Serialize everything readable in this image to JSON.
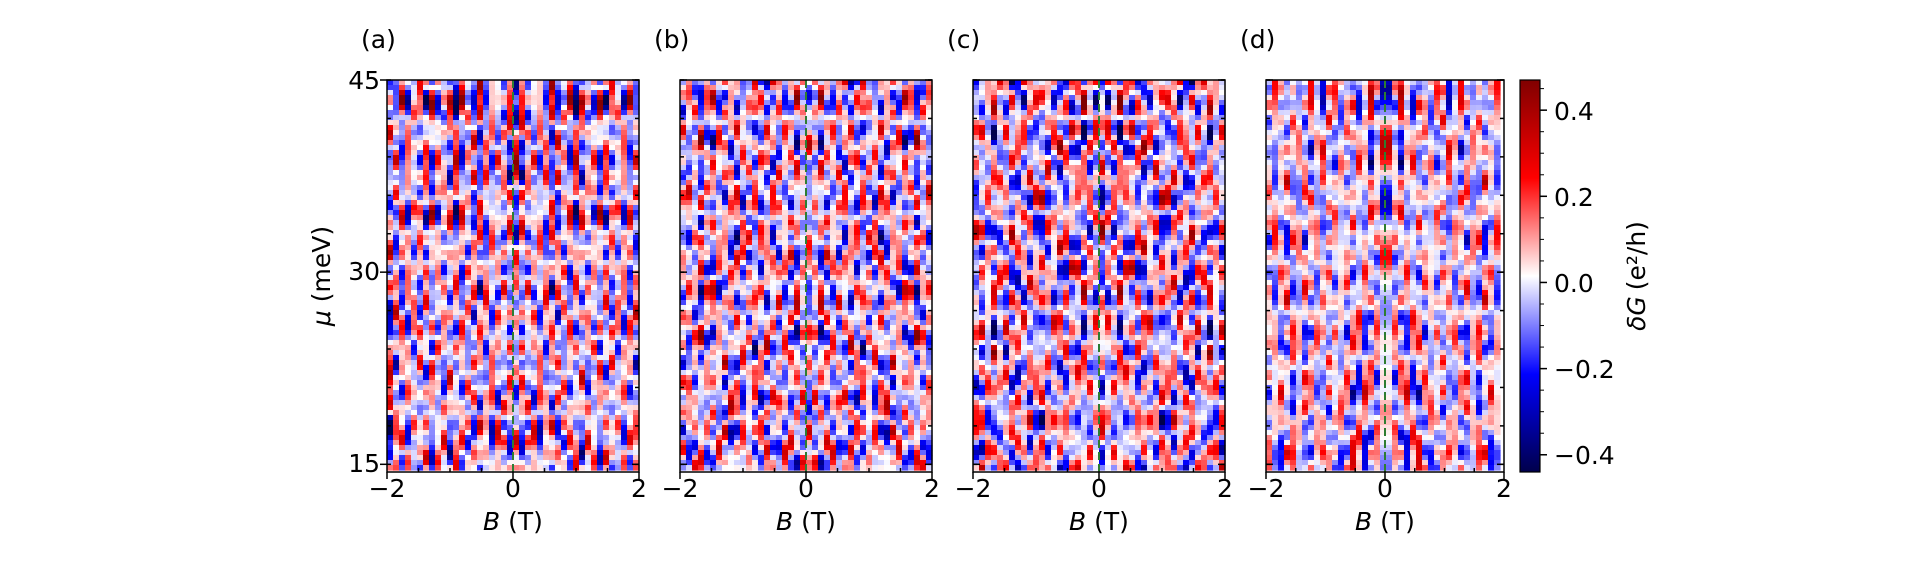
{
  "chart_data": {
    "type": "heatmap",
    "panels": [
      {
        "label": "(a)",
        "xlabel_var": "B",
        "xlabel_unit": " (T)",
        "x_ticks": [
          "−2",
          "0",
          "2"
        ],
        "xlim": [
          -2,
          2
        ]
      },
      {
        "label": "(b)",
        "xlabel_var": "B",
        "xlabel_unit": " (T)",
        "x_ticks": [
          "−2",
          "0",
          "2"
        ],
        "xlim": [
          -2,
          2
        ]
      },
      {
        "label": "(c)",
        "xlabel_var": "B",
        "xlabel_unit": " (T)",
        "x_ticks": [
          "−2",
          "0",
          "2"
        ],
        "xlim": [
          -2,
          2
        ]
      },
      {
        "label": "(d)",
        "xlabel_var": "B",
        "xlabel_unit": " (T)",
        "x_ticks": [
          "−2",
          "0",
          "2"
        ],
        "xlim": [
          -2,
          2
        ]
      }
    ],
    "ylabel_var": "μ",
    "ylabel_unit": " (meV)",
    "y_ticks": [
      "15",
      "30",
      "45"
    ],
    "y_tick_values": [
      15,
      30,
      45
    ],
    "ylim": [
      14.4,
      45
    ],
    "colorbar": {
      "label_prefix": "δG",
      "label_unit": "(e²/h)",
      "ticks": [
        "0.4",
        "0.2",
        "0.0",
        "−0.2",
        "−0.4"
      ],
      "tick_values": [
        0.4,
        0.2,
        0.0,
        -0.2,
        -0.4
      ],
      "range": [
        -0.44,
        0.47
      ],
      "colormap": "seismic",
      "colors": {
        "low": "#00004c",
        "mid": "#ffffff",
        "high": "#800000"
      }
    },
    "reference_line": {
      "x": 0,
      "style": "dashed",
      "color": "#2e7d32"
    }
  }
}
